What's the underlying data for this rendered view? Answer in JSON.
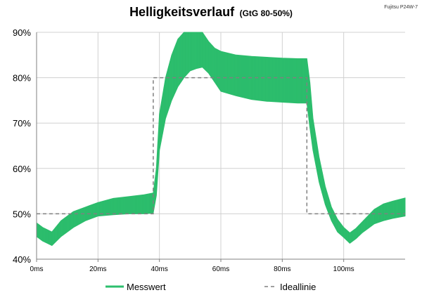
{
  "title": "Helligkeitsverlauf",
  "subtitle": "(GtG 80-50%)",
  "device_label": "Fujitsu P24W-7",
  "legend": {
    "series_label": "Messwert",
    "ideal_label": "Ideallinie",
    "position": "bottom"
  },
  "colors": {
    "measured": "#2dbf6e",
    "ideal": "#808080",
    "grid": "#d0d0d0",
    "axis": "#808080"
  },
  "chart_data": {
    "type": "line",
    "title": "Helligkeitsverlauf",
    "subtitle": "(GtG 80-50%)",
    "xlabel": "",
    "ylabel": "",
    "x_unit": "ms",
    "y_unit": "%",
    "xlim": [
      0,
      120
    ],
    "ylim": [
      40,
      90
    ],
    "x_ticks": [
      "0ms",
      "20ms",
      "40ms",
      "60ms",
      "80ms",
      "100ms"
    ],
    "y_ticks": [
      "40%",
      "50%",
      "60%",
      "70%",
      "80%",
      "90%"
    ],
    "grid": true,
    "series": [
      {
        "name": "Messwert",
        "style": "band",
        "x": [
          0,
          2,
          5,
          8,
          12,
          16,
          20,
          25,
          30,
          35,
          38,
          39,
          40,
          42,
          44,
          46,
          48,
          50,
          52,
          54,
          56,
          58,
          60,
          65,
          70,
          75,
          80,
          85,
          88,
          89,
          90,
          92,
          94,
          96,
          98,
          100,
          102,
          104,
          106,
          108,
          110,
          113,
          116,
          120
        ],
        "lower": [
          45,
          44,
          43,
          45,
          47,
          48.5,
          49.5,
          49.8,
          50,
          50,
          50.2,
          54,
          64,
          71,
          75,
          78,
          80,
          81.5,
          82,
          82.3,
          81,
          79,
          77,
          76,
          75.2,
          74.8,
          74.6,
          74.4,
          74.4,
          69,
          64,
          57,
          52,
          48.5,
          46,
          44.8,
          43.5,
          44.5,
          45.8,
          46.8,
          47.8,
          48.5,
          49,
          49.5
        ],
        "upper": [
          48,
          47,
          46,
          48.5,
          50.5,
          51.5,
          52.5,
          53.4,
          53.8,
          54.2,
          54.6,
          60,
          72,
          80,
          85,
          88.5,
          90,
          90,
          90,
          90,
          88,
          86.5,
          85.8,
          85,
          84.7,
          84.5,
          84.3,
          84.2,
          84.2,
          79,
          71,
          62.5,
          56,
          51.5,
          48.8,
          47,
          45.8,
          46.8,
          48.2,
          49.6,
          51,
          52.2,
          52.8,
          53.5
        ]
      },
      {
        "name": "Ideallinie",
        "style": "dashed",
        "x": [
          0,
          38,
          38,
          88,
          88,
          120
        ],
        "y": [
          50,
          50,
          80,
          80,
          50,
          50
        ]
      }
    ]
  }
}
